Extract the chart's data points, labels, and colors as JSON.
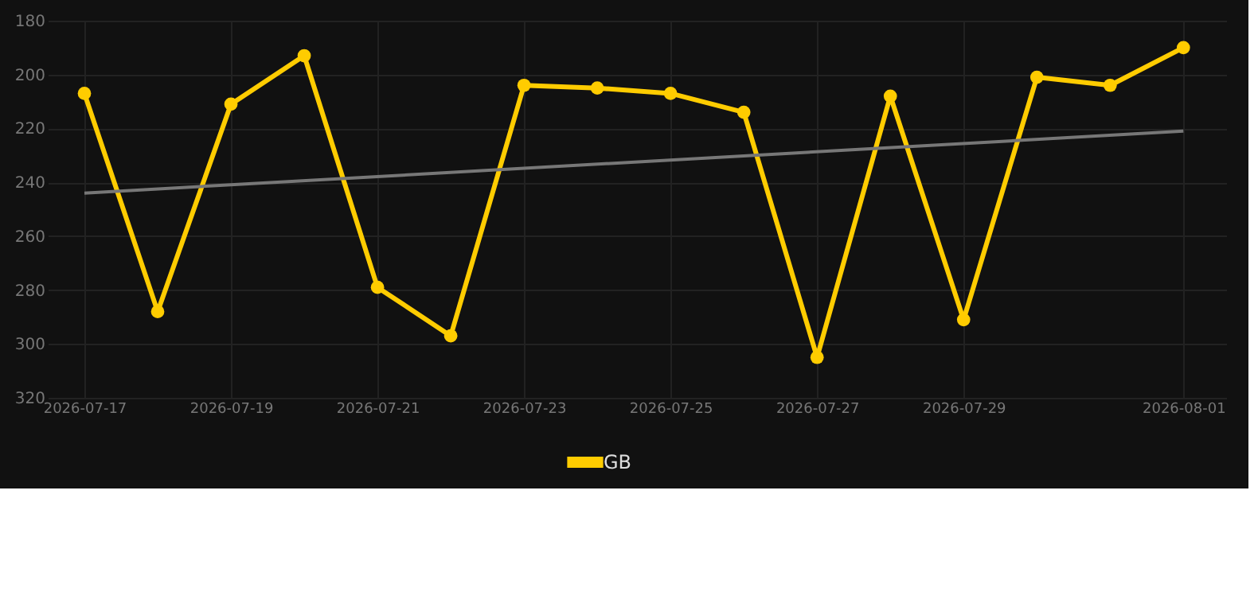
{
  "chart_data": {
    "type": "line",
    "x": [
      "2026-07-17",
      "2026-07-18",
      "2026-07-19",
      "2026-07-20",
      "2026-07-21",
      "2026-07-22",
      "2026-07-23",
      "2026-07-24",
      "2026-07-25",
      "2026-07-26",
      "2026-07-27",
      "2026-07-28",
      "2026-07-29",
      "2026-07-30",
      "2026-07-31",
      "2026-08-01"
    ],
    "series": [
      {
        "name": "GB",
        "color": "#ffcc00",
        "marker": "circle",
        "values": [
          207,
          288,
          211,
          193,
          279,
          297,
          204,
          205,
          207,
          214,
          305,
          208,
          291,
          201,
          204,
          190
        ]
      },
      {
        "type": "line",
        "color": "#777777",
        "marker": "none",
        "x": [
          "2026-07-17",
          "2026-08-01"
        ],
        "values": [
          244,
          221
        ]
      }
    ],
    "ylim": [
      320,
      180
    ],
    "yticks": [
      180,
      200,
      220,
      240,
      260,
      280,
      300,
      320
    ],
    "xlim": [
      "2026-07-16T12:00",
      "2026-08-01T14:00"
    ],
    "xticks": [
      "2026-07-17",
      "2026-07-19",
      "2026-07-21",
      "2026-07-23",
      "2026-07-25",
      "2026-07-27",
      "2026-07-29",
      "2026-08-01"
    ],
    "grid": true,
    "legend": "bottom",
    "line_style": "solid"
  }
}
